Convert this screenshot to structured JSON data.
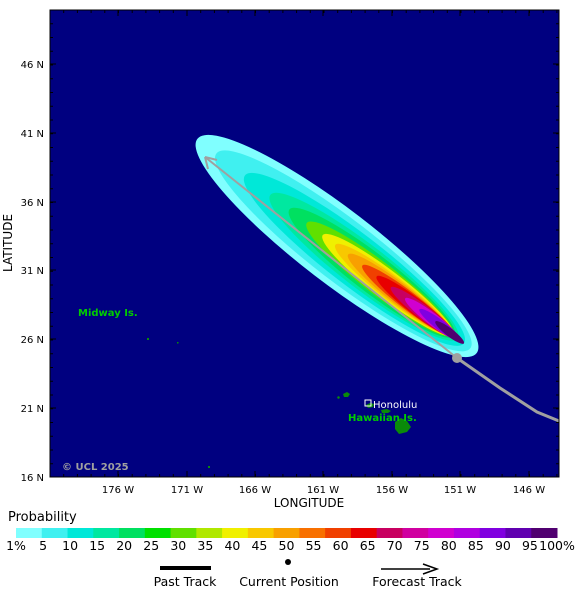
{
  "map": {
    "axis_x_title": "LONGITUDE",
    "axis_y_title": "LATITUDE",
    "lat_ticks": [
      "46 N",
      "41 N",
      "36 N",
      "31 N",
      "26 N",
      "21 N",
      "16 N"
    ],
    "lon_ticks": [
      "176 W",
      "171 W",
      "166 W",
      "161 W",
      "156 W",
      "151 W",
      "146 W"
    ],
    "lat_range": [
      16,
      49
    ],
    "lon_range": [
      -181.5,
      -144
    ],
    "labels": {
      "midway": "Midway Is.",
      "honolulu": "Honolulu",
      "hawaiian": "Hawaiian Is.",
      "copyright": "© UCL 2025"
    },
    "colors": {
      "ocean": "#000080",
      "land": "#0a8a0a",
      "label_green": "#00cc00",
      "past_track": "#a0a0a0"
    }
  },
  "legend": {
    "title": "Probability",
    "labels": [
      "1%",
      "5",
      "10",
      "15",
      "20",
      "25",
      "30",
      "35",
      "40",
      "45",
      "50",
      "55",
      "60",
      "65",
      "70",
      "75",
      "80",
      "85",
      "90",
      "95",
      "100%"
    ],
    "colors": [
      "#80ffff",
      "#40f0f0",
      "#00e8d8",
      "#00e8a0",
      "#00e060",
      "#00e000",
      "#60e000",
      "#b0e800",
      "#f0f000",
      "#f8c800",
      "#f8a000",
      "#f87000",
      "#f04000",
      "#e80000",
      "#c80060",
      "#d000a0",
      "#d000d0",
      "#b000e0",
      "#8000e0",
      "#6000b0",
      "#500070"
    ]
  },
  "key": {
    "past_track": "Past Track",
    "current_position": "Current Position",
    "forecast_track": "Forecast Track"
  }
}
